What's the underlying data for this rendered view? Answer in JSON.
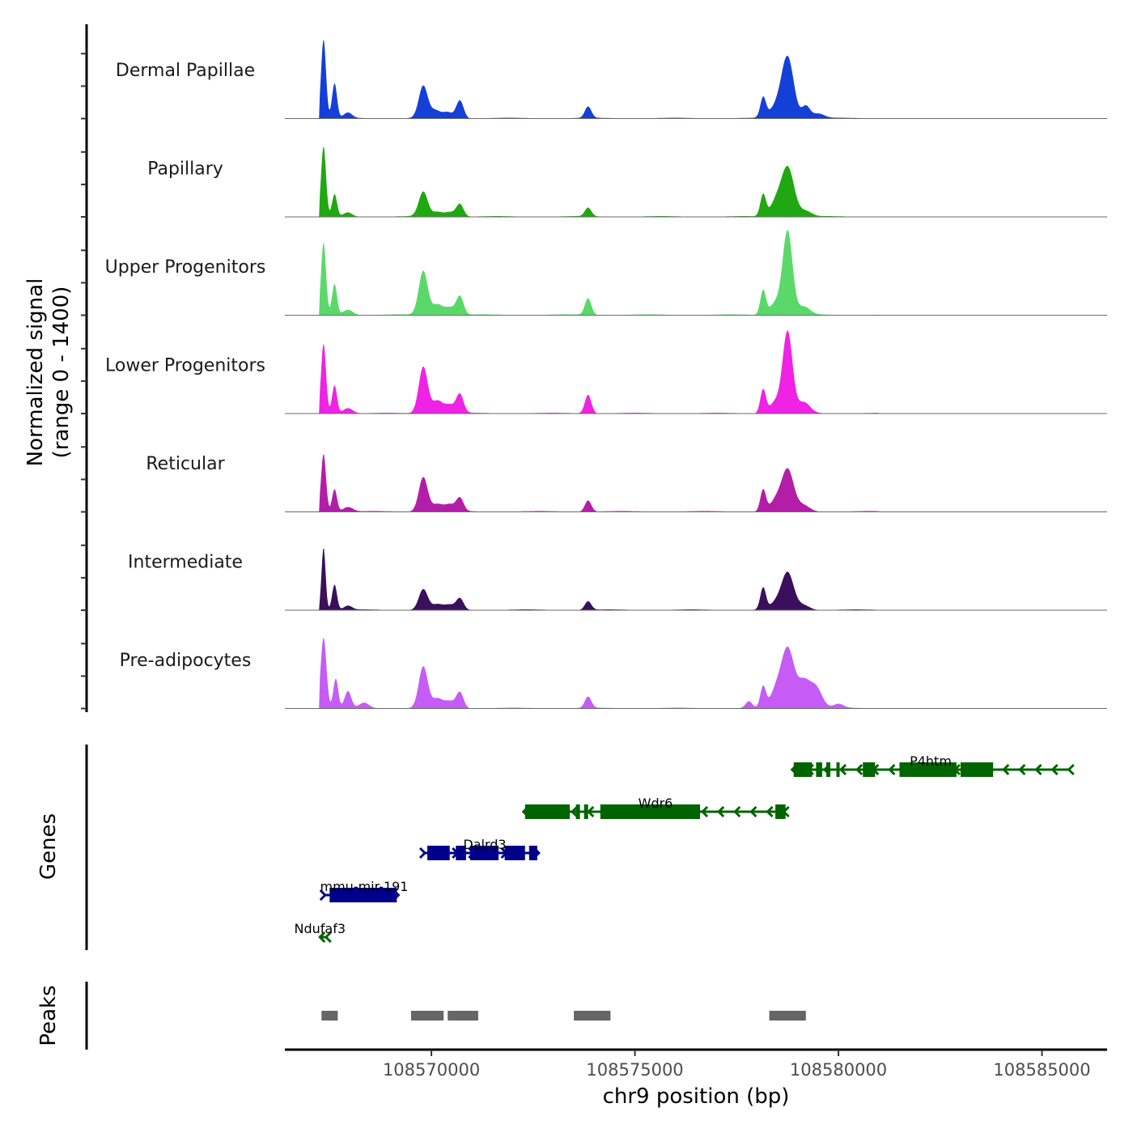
{
  "chart_data": {
    "type": "area",
    "title": "",
    "xlabel": "chr9 position (bp)",
    "ylabel": "Normalized signal\n(range 0 - 1400)",
    "ylabel_lines": [
      "Normalized signal",
      "(range 0 - 1400)"
    ],
    "ylim": [
      0,
      1400
    ],
    "xlim": [
      108566400,
      108586600
    ],
    "x_ticks": [
      108570000,
      108575000,
      108580000,
      108585000
    ],
    "x_tick_labels": [
      "108570000",
      "108575000",
      "108580000",
      "108585000"
    ],
    "grid": false,
    "series": [
      {
        "name": "Dermal Papillae",
        "color": "#1440d8",
        "peaks": [
          [
            108567350,
            1180,
            60
          ],
          [
            108567620,
            520,
            60
          ],
          [
            108567950,
            80,
            100
          ],
          [
            108569800,
            480,
            110
          ],
          [
            108570100,
            110,
            120
          ],
          [
            108570400,
            90,
            120
          ],
          [
            108570700,
            270,
            90
          ],
          [
            108573850,
            170,
            80
          ],
          [
            108578150,
            300,
            70
          ],
          [
            108578750,
            920,
            150
          ],
          [
            108578450,
            150,
            150
          ],
          [
            108579200,
            180,
            100
          ],
          [
            108579500,
            70,
            150
          ]
        ]
      },
      {
        "name": "Papillary",
        "color": "#1fa812",
        "peaks": [
          [
            108567350,
            1050,
            60
          ],
          [
            108567620,
            330,
            60
          ],
          [
            108567950,
            60,
            100
          ],
          [
            108569800,
            370,
            110
          ],
          [
            108570150,
            70,
            120
          ],
          [
            108570450,
            70,
            120
          ],
          [
            108570700,
            190,
            90
          ],
          [
            108573850,
            130,
            80
          ],
          [
            108578150,
            330,
            70
          ],
          [
            108578750,
            750,
            160
          ],
          [
            108578450,
            190,
            130
          ],
          [
            108579200,
            80,
            140
          ]
        ]
      },
      {
        "name": "Upper Progenitors",
        "color": "#5ad96a",
        "peaks": [
          [
            108567350,
            1080,
            60
          ],
          [
            108567620,
            460,
            60
          ],
          [
            108567950,
            80,
            120
          ],
          [
            108569800,
            660,
            110
          ],
          [
            108570150,
            160,
            130
          ],
          [
            108570450,
            110,
            120
          ],
          [
            108570700,
            280,
            90
          ],
          [
            108573850,
            250,
            80
          ],
          [
            108578150,
            370,
            70
          ],
          [
            108578750,
            1260,
            120
          ],
          [
            108578450,
            180,
            130
          ],
          [
            108579150,
            120,
            150
          ]
        ]
      },
      {
        "name": "Lower Progenitors",
        "color": "#ef22e5",
        "peaks": [
          [
            108567350,
            1040,
            60
          ],
          [
            108567620,
            420,
            60
          ],
          [
            108567950,
            80,
            120
          ],
          [
            108569800,
            700,
            110
          ],
          [
            108570150,
            190,
            130
          ],
          [
            108570450,
            120,
            120
          ],
          [
            108570700,
            280,
            90
          ],
          [
            108573850,
            280,
            80
          ],
          [
            108578150,
            360,
            70
          ],
          [
            108578750,
            1220,
            120
          ],
          [
            108578450,
            170,
            130
          ],
          [
            108579150,
            160,
            150
          ]
        ]
      },
      {
        "name": "Reticular",
        "color": "#b31ea8",
        "peaks": [
          [
            108567350,
            870,
            60
          ],
          [
            108567620,
            340,
            60
          ],
          [
            108567950,
            70,
            120
          ],
          [
            108569800,
            520,
            110
          ],
          [
            108570150,
            110,
            130
          ],
          [
            108570450,
            100,
            120
          ],
          [
            108570700,
            200,
            90
          ],
          [
            108573850,
            170,
            80
          ],
          [
            108578150,
            330,
            70
          ],
          [
            108578750,
            630,
            150
          ],
          [
            108578450,
            150,
            130
          ],
          [
            108579150,
            90,
            150
          ]
        ]
      },
      {
        "name": "Intermediate",
        "color": "#3a0f5c",
        "peaks": [
          [
            108567350,
            940,
            50
          ],
          [
            108567620,
            380,
            60
          ],
          [
            108567950,
            60,
            100
          ],
          [
            108569800,
            310,
            110
          ],
          [
            108570150,
            80,
            130
          ],
          [
            108570450,
            70,
            120
          ],
          [
            108570700,
            170,
            90
          ],
          [
            108573850,
            130,
            80
          ],
          [
            108578150,
            330,
            70
          ],
          [
            108578750,
            560,
            150
          ],
          [
            108578450,
            90,
            130
          ],
          [
            108579150,
            70,
            150
          ]
        ]
      },
      {
        "name": "Pre-adipocytes",
        "color": "#c55cf5",
        "peaks": [
          [
            108567350,
            1060,
            70
          ],
          [
            108567650,
            440,
            60
          ],
          [
            108567950,
            250,
            80
          ],
          [
            108568350,
            80,
            120
          ],
          [
            108569800,
            620,
            110
          ],
          [
            108570150,
            140,
            130
          ],
          [
            108570450,
            100,
            120
          ],
          [
            108570700,
            240,
            90
          ],
          [
            108573850,
            170,
            80
          ],
          [
            108577800,
            100,
            80
          ],
          [
            108578150,
            320,
            70
          ],
          [
            108578750,
            900,
            160
          ],
          [
            108578450,
            220,
            130
          ],
          [
            108579150,
            380,
            150
          ],
          [
            108579450,
            300,
            150
          ],
          [
            108580000,
            60,
            120
          ]
        ]
      }
    ],
    "genes": {
      "label": "Genes",
      "items": [
        {
          "name": "P4htm",
          "strand": "-",
          "color": "#006400",
          "start": 108578900,
          "end": 108585700,
          "row": 0,
          "exons": [
            [
              108578900,
              108579350
            ],
            [
              108579450,
              108579600
            ],
            [
              108579700,
              108579800
            ],
            [
              108579950,
              108580000
            ],
            [
              108580600,
              108580900
            ],
            [
              108581500,
              108582900
            ],
            [
              108583000,
              108583800
            ]
          ]
        },
        {
          "name": "Wdr6",
          "strand": "-",
          "color": "#006400",
          "start": 108572300,
          "end": 108578700,
          "row": 1,
          "exons": [
            [
              108572300,
              108573400
            ],
            [
              108573550,
              108573650
            ],
            [
              108573750,
              108573850
            ],
            [
              108574150,
              108576600
            ],
            [
              108578450,
              108578700
            ]
          ]
        },
        {
          "name": "Dalrd3",
          "strand": "+",
          "color": "#00008b",
          "start": 108569800,
          "end": 108572600,
          "row": 2,
          "exons": [
            [
              108569900,
              108570450
            ],
            [
              108570600,
              108570850
            ],
            [
              108570950,
              108571650
            ],
            [
              108571800,
              108572300
            ],
            [
              108572400,
              108572600
            ]
          ]
        },
        {
          "name": "mmu-mir-191",
          "strand": "+",
          "color": "#00008b",
          "start": 108567350,
          "end": 108569150,
          "row": 3,
          "exons": [
            [
              108567500,
              108569150
            ]
          ]
        },
        {
          "name": "Ndufaf3",
          "strand": "-",
          "color": "#006400",
          "start": 108567300,
          "end": 108567450,
          "row": 4,
          "exons": []
        }
      ]
    },
    "peaks": {
      "label": "Peaks",
      "color": "#666666",
      "regions": [
        [
          108567300,
          108567700
        ],
        [
          108569500,
          108570300
        ],
        [
          108570400,
          108571150
        ],
        [
          108573500,
          108574400
        ],
        [
          108578300,
          108579200
        ]
      ]
    }
  }
}
